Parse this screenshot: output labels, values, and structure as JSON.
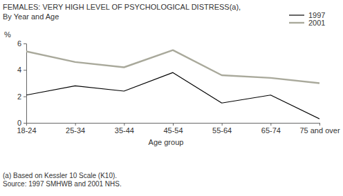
{
  "chart_data": {
    "type": "line",
    "title": "FEMALES: VERY HIGH LEVEL OF PSYCHOLOGICAL DISTRESS(a),",
    "subtitle": "By Year and Age",
    "y_label": "%",
    "x_label": "Age group",
    "annotations": [
      "(a) Based on Kessler 10 Scale (K10).",
      "Source: 1997 SMHWB and 2001 NHS."
    ],
    "categories": [
      "18-24",
      "25-34",
      "35-44",
      "45-54",
      "55-64",
      "65-74",
      "75 and over"
    ],
    "series": [
      {
        "name": "1997",
        "color": "#000000",
        "values": [
          2.1,
          2.8,
          2.4,
          3.8,
          1.5,
          2.1,
          0.3
        ]
      },
      {
        "name": "2001",
        "color": "#a9a99b",
        "values": [
          5.4,
          4.6,
          4.2,
          5.5,
          3.6,
          3.4,
          3.0
        ]
      }
    ],
    "ylim": [
      0,
      6
    ],
    "yticks": [
      0,
      2,
      4,
      6
    ],
    "grid": false,
    "legend": "top right"
  }
}
